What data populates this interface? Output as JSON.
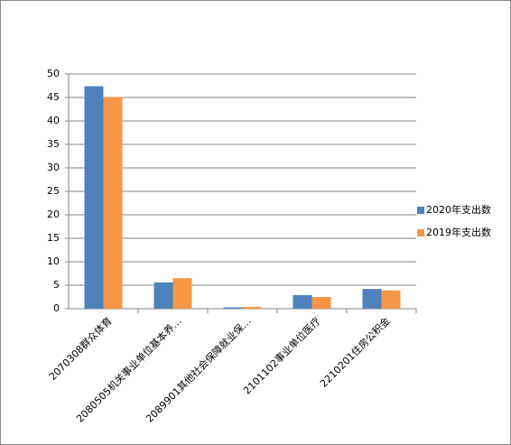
{
  "chart_data": {
    "type": "bar",
    "categories": [
      "2070308群众体育",
      "2080505机关事业单位基本养…",
      "2089901其他社会保障就业保…",
      "2101102事业单位医疗",
      "2210201住房公积金"
    ],
    "series": [
      {
        "name": "2020年支出数",
        "color": "#4f81bd",
        "values": [
          47.4,
          5.6,
          0.3,
          2.9,
          4.2
        ]
      },
      {
        "name": "2019年支出数",
        "color": "#f79646",
        "values": [
          45.1,
          6.5,
          0.4,
          2.5,
          3.9
        ]
      }
    ],
    "ylim": [
      0,
      50
    ],
    "yticks": [
      0,
      5,
      10,
      15,
      20,
      25,
      30,
      35,
      40,
      45,
      50
    ],
    "grid": true,
    "legend": "right"
  }
}
